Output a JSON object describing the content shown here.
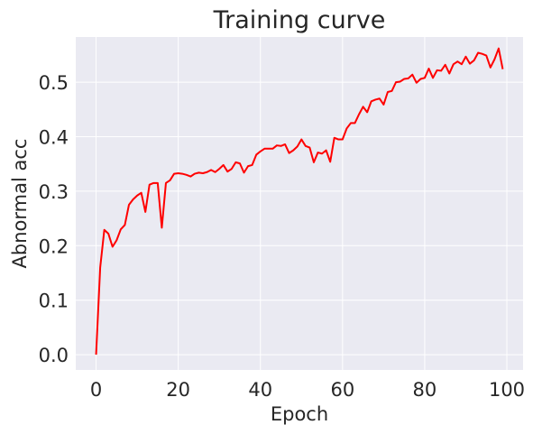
{
  "chart_data": {
    "type": "line",
    "title": "Training curve",
    "xlabel": "Epoch",
    "ylabel": "Abnormal acc",
    "xlim": [
      -4.95,
      103.95
    ],
    "ylim": [
      -0.028,
      0.583
    ],
    "x_ticks": [
      0,
      20,
      40,
      60,
      80,
      100
    ],
    "x_tick_labels": [
      "0",
      "20",
      "40",
      "60",
      "80",
      "100"
    ],
    "y_ticks": [
      0.0,
      0.1,
      0.2,
      0.3,
      0.4,
      0.5
    ],
    "y_tick_labels": [
      "0.0",
      "0.1",
      "0.2",
      "0.3",
      "0.4",
      "0.5"
    ],
    "grid": true,
    "background": "#eaeaf2",
    "grid_color": "#ffffff",
    "series": [
      {
        "color": "#ff0000",
        "x": [
          0,
          1,
          2,
          3,
          4,
          5,
          6,
          7,
          8,
          9,
          10,
          11,
          12,
          13,
          14,
          15,
          16,
          17,
          18,
          19,
          20,
          21,
          22,
          23,
          24,
          25,
          26,
          27,
          28,
          29,
          30,
          31,
          32,
          33,
          34,
          35,
          36,
          37,
          38,
          39,
          40,
          41,
          42,
          43,
          44,
          45,
          46,
          47,
          48,
          49,
          50,
          51,
          52,
          53,
          54,
          55,
          56,
          57,
          58,
          59,
          60,
          61,
          62,
          63,
          64,
          65,
          66,
          67,
          68,
          69,
          70,
          71,
          72,
          73,
          74,
          75,
          76,
          77,
          78,
          79,
          80,
          81,
          82,
          83,
          84,
          85,
          86,
          87,
          88,
          89,
          90,
          91,
          92,
          93,
          94,
          95,
          96,
          97,
          98,
          99
        ],
        "values": [
          0.0,
          0.16,
          0.229,
          0.222,
          0.198,
          0.21,
          0.23,
          0.238,
          0.275,
          0.285,
          0.292,
          0.297,
          0.262,
          0.312,
          0.315,
          0.315,
          0.233,
          0.315,
          0.32,
          0.332,
          0.333,
          0.332,
          0.33,
          0.327,
          0.332,
          0.334,
          0.333,
          0.335,
          0.339,
          0.335,
          0.341,
          0.348,
          0.336,
          0.341,
          0.353,
          0.351,
          0.334,
          0.346,
          0.348,
          0.367,
          0.373,
          0.378,
          0.378,
          0.378,
          0.384,
          0.383,
          0.386,
          0.37,
          0.375,
          0.382,
          0.395,
          0.383,
          0.38,
          0.353,
          0.371,
          0.369,
          0.375,
          0.354,
          0.398,
          0.395,
          0.395,
          0.415,
          0.425,
          0.425,
          0.441,
          0.455,
          0.445,
          0.465,
          0.468,
          0.47,
          0.459,
          0.482,
          0.484,
          0.5,
          0.501,
          0.506,
          0.507,
          0.514,
          0.499,
          0.506,
          0.508,
          0.525,
          0.508,
          0.522,
          0.521,
          0.532,
          0.516,
          0.533,
          0.538,
          0.533,
          0.547,
          0.534,
          0.54,
          0.554,
          0.552,
          0.549,
          0.527,
          0.542,
          0.562,
          0.524
        ]
      }
    ]
  }
}
